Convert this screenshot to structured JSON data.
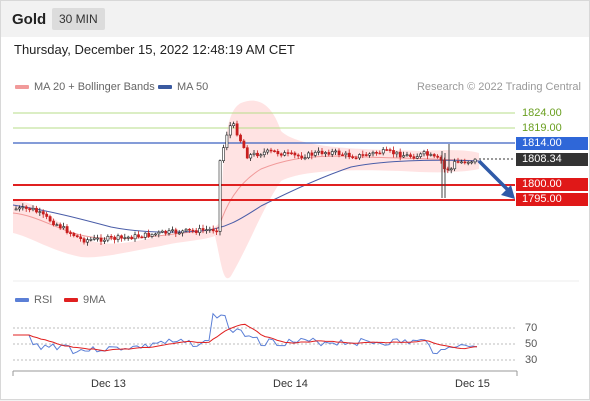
{
  "header": {
    "symbol": "Gold",
    "interval": "30 MIN"
  },
  "datetime": "Thursday, December 15, 2022 12:48:19 AM CET",
  "legend": {
    "ma_bb": "MA 20 + Bollinger Bands",
    "ma50": "MA 50",
    "copyright": "Research © 2022 Trading Central"
  },
  "colors": {
    "resistance_line": "#a3d36b",
    "pivot": "#3a62c0",
    "support": "#e02020",
    "bollinger_fill": "#ffdede",
    "ma20": "#f19a9a",
    "ma50": "#4a5da8",
    "rsi": "#5b7fd6",
    "rsi_ma": "#e02020",
    "candle_up": "#222222",
    "candle_down": "#c81e1e"
  },
  "levels": {
    "r2": "1824.00",
    "r1": "1819.00",
    "pivot": "1814.00",
    "last": "1808.34",
    "s1": "1800.00",
    "s2": "1795.00"
  },
  "rsi": {
    "label": "RSI",
    "ma_label": "9MA",
    "levels": [
      "70",
      "50",
      "30"
    ]
  },
  "xaxis": [
    "Dec 13",
    "Dec 14",
    "Dec 15"
  ],
  "icons": {
    "trend_arrow": "arrow-down-right-icon"
  }
}
